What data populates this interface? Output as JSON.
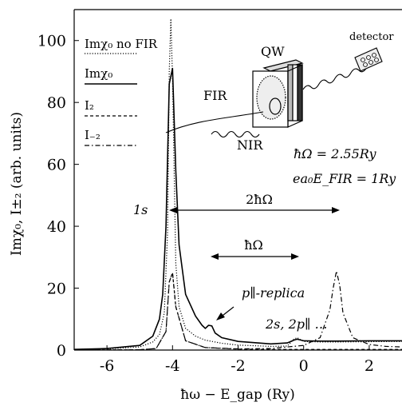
{
  "chart_data": {
    "type": "line",
    "xlabel": "ħω − E_gap (Ry)",
    "ylabel": "Imχ₀, I±₂ (arb. units)",
    "xlim": [
      -7,
      3
    ],
    "ylim": [
      0,
      110
    ],
    "x_ticks": [
      {
        "value": -6,
        "label": "-6"
      },
      {
        "value": -4,
        "label": "-4"
      },
      {
        "value": -2,
        "label": "-2"
      },
      {
        "value": 0,
        "label": "0"
      },
      {
        "value": 2,
        "label": "2"
      }
    ],
    "y_ticks": [
      {
        "value": 0,
        "label": "0"
      },
      {
        "value": 20,
        "label": "20"
      },
      {
        "value": 40,
        "label": "40"
      },
      {
        "value": 60,
        "label": "60"
      },
      {
        "value": 80,
        "label": "80"
      },
      {
        "value": 100,
        "label": "100"
      }
    ],
    "grid": false,
    "legend_position": "top-left",
    "series": [
      {
        "name": "Imχ₀ no FIR",
        "style": "dotted",
        "x": [
          -7,
          -6,
          -5,
          -4.6,
          -4.4,
          -4.25,
          -4.15,
          -4.1,
          -4.05,
          -4.0,
          -3.9,
          -3.8,
          -3.6,
          -3.3,
          -3.0,
          -2.5,
          -2.0,
          -1.0,
          -0.5,
          -0.3,
          -0.2,
          0.0,
          0.5,
          1.0,
          2.0,
          3.0
        ],
        "y": [
          0.2,
          0.4,
          1.0,
          2.6,
          5.0,
          12.0,
          38.0,
          90.0,
          107.0,
          88.0,
          28.0,
          14.0,
          7.0,
          4.5,
          3.2,
          2.2,
          1.6,
          1.2,
          1.3,
          3.5,
          4.0,
          2.8,
          2.6,
          2.6,
          2.7,
          2.8
        ]
      },
      {
        "name": "Imχ₀",
        "style": "solid",
        "x": [
          -7,
          -6,
          -5,
          -4.6,
          -4.4,
          -4.3,
          -4.2,
          -4.1,
          -4.0,
          -3.9,
          -3.8,
          -3.6,
          -3.3,
          -3.1,
          -3.0,
          -2.9,
          -2.8,
          -2.7,
          -2.5,
          -2.0,
          -1.0,
          -0.5,
          -0.3,
          -0.2,
          0.0,
          0.5,
          1.0,
          2.0,
          3.0
        ],
        "y": [
          0.2,
          0.5,
          1.5,
          4.5,
          10.0,
          18.0,
          40.0,
          86.0,
          91.0,
          58.0,
          34.0,
          18.0,
          11.0,
          8.0,
          7.0,
          8.0,
          7.8,
          5.5,
          4.0,
          2.8,
          2.0,
          2.3,
          3.2,
          3.5,
          3.0,
          2.9,
          2.9,
          3.0,
          3.0
        ]
      },
      {
        "name": "I₂",
        "style": "dashed",
        "x": [
          -7,
          -5,
          -4.5,
          -4.2,
          -4.1,
          -4.0,
          -3.9,
          -3.6,
          -3.0,
          -2.0,
          -1.0,
          0.0,
          1.0,
          2.0,
          3.0
        ],
        "y": [
          0.0,
          0.1,
          0.5,
          6.0,
          22.0,
          25.0,
          14.0,
          3.0,
          0.8,
          0.3,
          0.2,
          0.2,
          0.2,
          0.2,
          0.2
        ]
      },
      {
        "name": "I₋₂",
        "style": "dashdot",
        "x": [
          -7,
          -5,
          -4.5,
          -4.2,
          -4.1,
          -4.0,
          -3.9,
          -3.6,
          -3.0,
          -2.0,
          -1.0,
          -0.5,
          0.0,
          0.5,
          0.8,
          0.9,
          1.0,
          1.1,
          1.2,
          1.5,
          2.0,
          2.5,
          3.0
        ],
        "y": [
          0.0,
          0.1,
          0.5,
          6.0,
          22.0,
          25.0,
          14.0,
          3.0,
          0.8,
          0.4,
          0.5,
          1.0,
          1.5,
          4.0,
          13.0,
          20.0,
          25.5,
          21.0,
          12.0,
          4.0,
          1.8,
          1.2,
          1.0
        ]
      }
    ],
    "annotations": {
      "peak_1s": "1s",
      "two_omega": "2ħΩ",
      "omega": "ħΩ",
      "p_replica": "p∥-replica",
      "two_s": "2s, 2p∥ …",
      "omega_value": "ħΩ = 2.55Ry",
      "field_value": "ea₀E_FIR = 1Ry"
    },
    "inset": {
      "qw_label": "QW",
      "fir_label": "FIR",
      "nir_label": "NIR",
      "detector_label": "detector"
    }
  }
}
